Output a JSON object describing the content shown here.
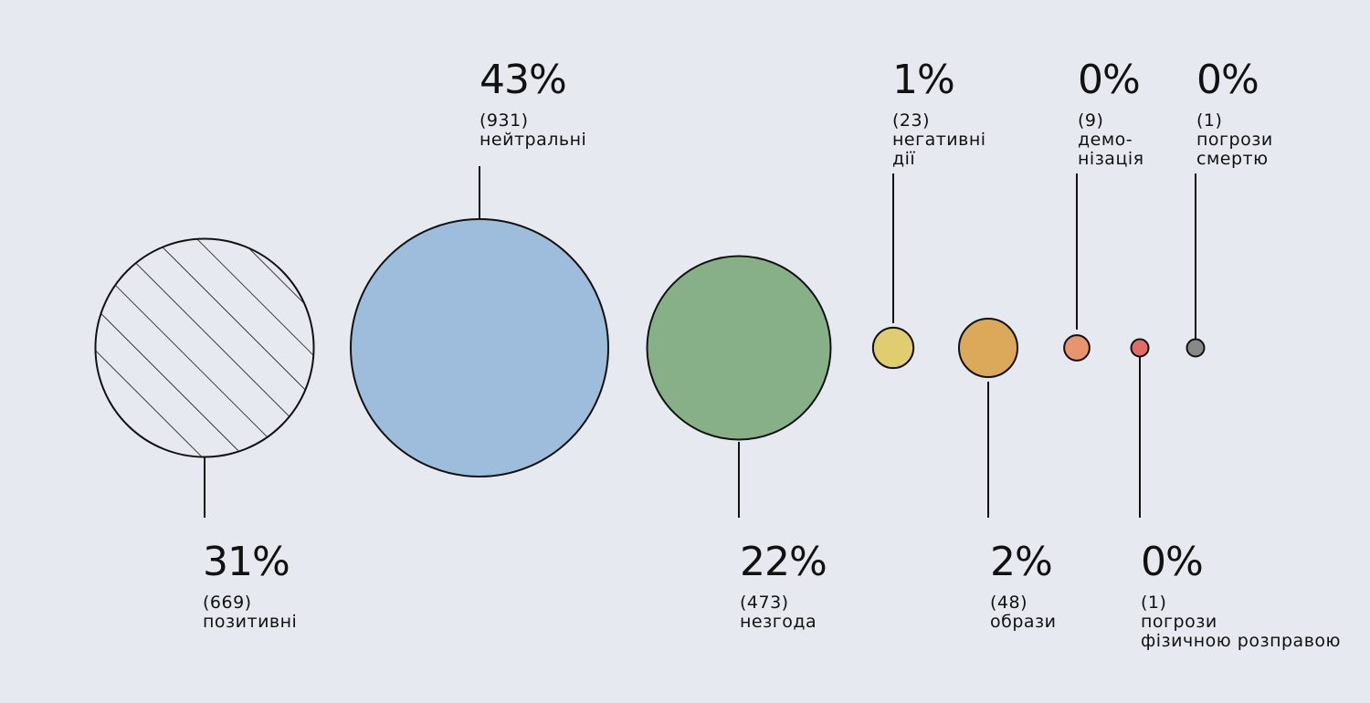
{
  "chart_data": {
    "type": "bubble",
    "categories": [
      {
        "key": "positive",
        "percent": "31%",
        "count": "(669)",
        "name": [
          "позитивні"
        ],
        "value": 669,
        "color": "#e6eaf0",
        "pattern": "hatch"
      },
      {
        "key": "neutral",
        "percent": "43%",
        "count": "(931)",
        "name": [
          "нейтральні"
        ],
        "value": 931,
        "color": "#9ebcdc"
      },
      {
        "key": "disagreement",
        "percent": "22%",
        "count": "(473)",
        "name": [
          "незгода"
        ],
        "value": 473,
        "color": "#88b088"
      },
      {
        "key": "negative-actions",
        "percent": "1%",
        "count": "(23)",
        "name": [
          "негативні",
          "дії"
        ],
        "value": 23,
        "color": "#dfcd6f"
      },
      {
        "key": "insults",
        "percent": "2%",
        "count": "(48)",
        "name": [
          "образи"
        ],
        "value": 48,
        "color": "#dca85a"
      },
      {
        "key": "demonization",
        "percent": "0%",
        "count": "(9)",
        "name": [
          "демо-",
          "нізація"
        ],
        "value": 9,
        "color": "#e7956c"
      },
      {
        "key": "threats-physical",
        "percent": "0%",
        "count": "(1)",
        "name": [
          "погрози",
          "фізичною розправою"
        ],
        "value": 1,
        "color": "#e06c6a"
      },
      {
        "key": "threats-death",
        "percent": "0%",
        "count": "(1)",
        "name": [
          "погрози",
          "смертю"
        ],
        "value": 1,
        "color": "#878985"
      }
    ]
  }
}
